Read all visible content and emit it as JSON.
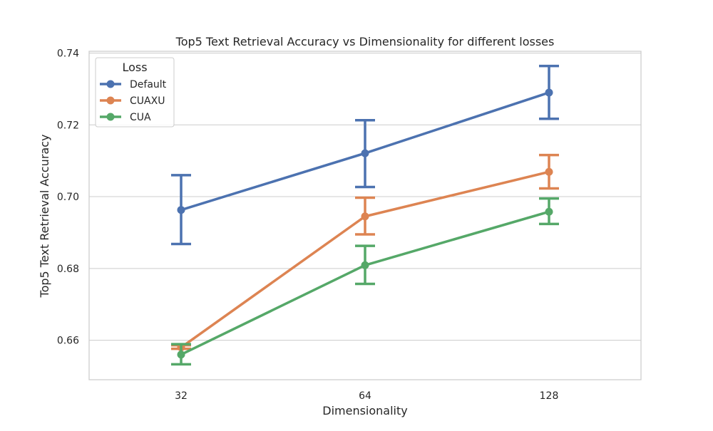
{
  "chart_data": {
    "type": "line",
    "title": "Top5 Text Retrieval Accuracy vs Dimensionality for different losses",
    "xlabel": "Dimensionality",
    "ylabel": "Top5 Text Retrieval Accuracy",
    "categories": [
      "32",
      "64",
      "128"
    ],
    "ylim": [
      0.649,
      0.7405
    ],
    "yticks": [
      0.66,
      0.68,
      0.7,
      0.72,
      0.74
    ],
    "ytick_labels": [
      "0.66",
      "0.68",
      "0.70",
      "0.72",
      "0.74"
    ],
    "grid": true,
    "legend": {
      "title": "Loss",
      "position": "top-left"
    },
    "series": [
      {
        "name": "Default",
        "color": "#4c72b0",
        "values": [
          0.6963,
          0.7121,
          0.729
        ],
        "err_low": [
          0.6868,
          0.7027,
          0.7217
        ],
        "err_high": [
          0.706,
          0.7213,
          0.7364
        ]
      },
      {
        "name": "CUAXU",
        "color": "#dd8452",
        "values": [
          0.658,
          0.6945,
          0.7069
        ],
        "err_low": [
          0.6576,
          0.6895,
          0.7023
        ],
        "err_high": [
          0.6586,
          0.6997,
          0.7116
        ]
      },
      {
        "name": "CUA",
        "color": "#55a868",
        "values": [
          0.656,
          0.6809,
          0.6958
        ],
        "err_low": [
          0.6533,
          0.6757,
          0.6924
        ],
        "err_high": [
          0.6589,
          0.6863,
          0.6995
        ]
      }
    ]
  }
}
